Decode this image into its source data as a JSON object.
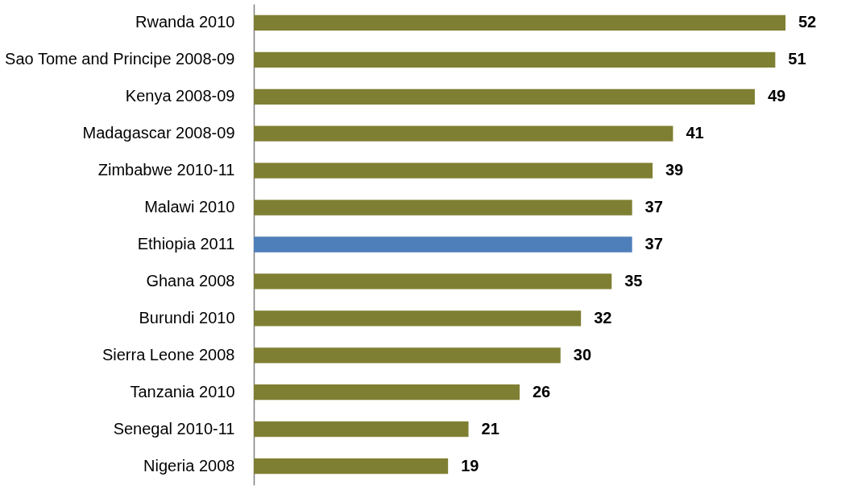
{
  "chart_data": {
    "type": "bar",
    "orientation": "horizontal",
    "data_labels": true,
    "categories": [
      "Rwanda 2010",
      "Sao Tome and Principe 2008-09",
      "Kenya 2008-09",
      "Madagascar 2008-09",
      "Zimbabwe 2010-11",
      "Malawi 2010",
      "Ethiopia 2011",
      "Ghana 2008",
      "Burundi 2010",
      "Sierra Leone 2008",
      "Tanzania 2010",
      "Senegal 2010-11",
      "Nigeria 2008"
    ],
    "values": [
      52,
      51,
      49,
      41,
      39,
      37,
      37,
      35,
      32,
      30,
      26,
      21,
      19
    ],
    "colors": [
      "#7f7f33",
      "#7f7f33",
      "#7f7f33",
      "#7f7f33",
      "#7f7f33",
      "#7f7f33",
      "#4f7fba",
      "#7f7f33",
      "#7f7f33",
      "#7f7f33",
      "#7f7f33",
      "#7f7f33",
      "#7f7f33"
    ]
  }
}
